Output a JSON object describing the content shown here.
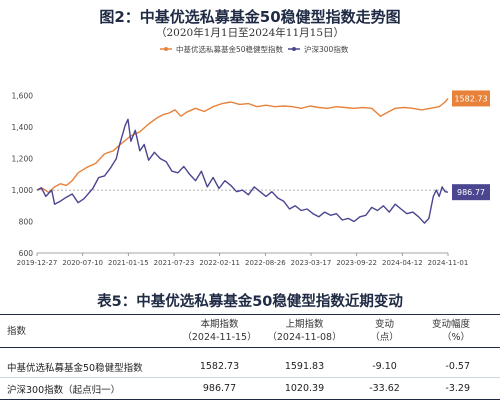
{
  "figure": {
    "title": "图2：中基优选私募基金50稳健型指数走势图",
    "subtitle": "（2020年1月1日至2024年11月15日）"
  },
  "chart_data": {
    "type": "line",
    "x_tick_labels": [
      "2019-12-27",
      "2020-07-10",
      "2021-01-15",
      "2021-07-23",
      "2022-02-11",
      "2022-08-26",
      "2023-03-17",
      "2023-09-22",
      "2024-04-12",
      "2024-11-01"
    ],
    "ylim": [
      600,
      1700
    ],
    "y_ticks": [
      600,
      800,
      1000,
      1200,
      1400,
      1600
    ],
    "y_tick_labels": [
      "600",
      "800",
      "1,000",
      "1,200",
      "1,400",
      "1,600"
    ],
    "reference_line": 1000,
    "legend_position": "top",
    "series": [
      {
        "name": "中基优选私募基金50稳健型指数",
        "color": "#e8823a",
        "end_label": "1582.73",
        "values": [
          [
            0,
            1000
          ],
          [
            0.2,
            1010
          ],
          [
            0.4,
            985
          ],
          [
            0.6,
            1020
          ],
          [
            0.8,
            1040
          ],
          [
            1.0,
            1030
          ],
          [
            1.2,
            1060
          ],
          [
            1.4,
            1110
          ],
          [
            1.7,
            1145
          ],
          [
            2.0,
            1170
          ],
          [
            2.3,
            1230
          ],
          [
            2.6,
            1250
          ],
          [
            2.9,
            1300
          ],
          [
            3.2,
            1345
          ],
          [
            3.5,
            1370
          ],
          [
            3.8,
            1420
          ],
          [
            4.1,
            1460
          ],
          [
            4.3,
            1480
          ],
          [
            4.5,
            1490
          ],
          [
            4.7,
            1510
          ],
          [
            4.9,
            1470
          ],
          [
            5.1,
            1495
          ],
          [
            5.4,
            1520
          ],
          [
            5.7,
            1500
          ],
          [
            6.0,
            1530
          ],
          [
            6.3,
            1550
          ],
          [
            6.6,
            1560
          ],
          [
            6.9,
            1545
          ],
          [
            7.2,
            1550
          ],
          [
            7.5,
            1530
          ],
          [
            7.8,
            1540
          ],
          [
            8.1,
            1530
          ],
          [
            8.4,
            1535
          ],
          [
            8.7,
            1530
          ],
          [
            9.0,
            1520
          ],
          [
            9.3,
            1535
          ],
          [
            9.6,
            1525
          ],
          [
            9.9,
            1520
          ],
          [
            10.2,
            1530
          ],
          [
            10.5,
            1525
          ],
          [
            10.8,
            1520
          ],
          [
            11.1,
            1525
          ],
          [
            11.4,
            1520
          ],
          [
            11.7,
            1470
          ],
          [
            11.9,
            1490
          ],
          [
            12.2,
            1520
          ],
          [
            12.5,
            1525
          ],
          [
            12.8,
            1520
          ],
          [
            13.1,
            1510
          ],
          [
            13.4,
            1520
          ],
          [
            13.7,
            1530
          ],
          [
            13.9,
            1560
          ],
          [
            14.0,
            1582.73
          ]
        ]
      },
      {
        "name": "沪深300指数",
        "color": "#4a4690",
        "end_label": "986.77",
        "values": [
          [
            0,
            1000
          ],
          [
            0.15,
            1015
          ],
          [
            0.3,
            960
          ],
          [
            0.5,
            1000
          ],
          [
            0.6,
            910
          ],
          [
            0.8,
            930
          ],
          [
            1.0,
            955
          ],
          [
            1.2,
            975
          ],
          [
            1.4,
            920
          ],
          [
            1.6,
            945
          ],
          [
            1.9,
            1010
          ],
          [
            2.1,
            1080
          ],
          [
            2.3,
            1090
          ],
          [
            2.5,
            1140
          ],
          [
            2.7,
            1200
          ],
          [
            2.8,
            1280
          ],
          [
            3.0,
            1410
          ],
          [
            3.1,
            1450
          ],
          [
            3.2,
            1310
          ],
          [
            3.35,
            1380
          ],
          [
            3.5,
            1250
          ],
          [
            3.65,
            1290
          ],
          [
            3.8,
            1190
          ],
          [
            4.0,
            1240
          ],
          [
            4.2,
            1200
          ],
          [
            4.4,
            1180
          ],
          [
            4.6,
            1120
          ],
          [
            4.8,
            1110
          ],
          [
            5.0,
            1150
          ],
          [
            5.2,
            1100
          ],
          [
            5.4,
            1060
          ],
          [
            5.6,
            1120
          ],
          [
            5.8,
            1020
          ],
          [
            6.0,
            1080
          ],
          [
            6.2,
            1010
          ],
          [
            6.4,
            1060
          ],
          [
            6.6,
            1030
          ],
          [
            6.8,
            990
          ],
          [
            7.0,
            1000
          ],
          [
            7.2,
            970
          ],
          [
            7.4,
            1020
          ],
          [
            7.6,
            990
          ],
          [
            7.8,
            960
          ],
          [
            8.0,
            990
          ],
          [
            8.2,
            950
          ],
          [
            8.4,
            930
          ],
          [
            8.6,
            880
          ],
          [
            8.8,
            900
          ],
          [
            9.0,
            870
          ],
          [
            9.2,
            880
          ],
          [
            9.4,
            850
          ],
          [
            9.6,
            830
          ],
          [
            9.8,
            860
          ],
          [
            10.0,
            840
          ],
          [
            10.2,
            850
          ],
          [
            10.4,
            810
          ],
          [
            10.6,
            820
          ],
          [
            10.8,
            800
          ],
          [
            11.0,
            830
          ],
          [
            11.2,
            840
          ],
          [
            11.4,
            890
          ],
          [
            11.6,
            870
          ],
          [
            11.8,
            900
          ],
          [
            12.0,
            860
          ],
          [
            12.2,
            910
          ],
          [
            12.4,
            880
          ],
          [
            12.6,
            850
          ],
          [
            12.8,
            860
          ],
          [
            13.0,
            830
          ],
          [
            13.2,
            790
          ],
          [
            13.35,
            820
          ],
          [
            13.5,
            960
          ],
          [
            13.6,
            1000
          ],
          [
            13.7,
            960
          ],
          [
            13.8,
            1020
          ],
          [
            13.9,
            990
          ],
          [
            14.0,
            986.77
          ]
        ]
      }
    ]
  },
  "table": {
    "title": "表5：中基优选私募基金50稳健型指数近期变动",
    "headers": [
      [
        "指数",
        ""
      ],
      [
        "本期指数",
        "（2024-11-15）"
      ],
      [
        "上期指数",
        "（2024-11-08）"
      ],
      [
        "变动",
        "（点）"
      ],
      [
        "变动幅度",
        "（%）"
      ]
    ],
    "rows": [
      [
        "中基优选私募基金50稳健型指数",
        "1582.73",
        "1591.83",
        "-9.10",
        "-0.57"
      ],
      [
        "沪深300指数（起点归一）",
        "986.77",
        "1020.39",
        "-33.62",
        "-3.29"
      ]
    ]
  }
}
